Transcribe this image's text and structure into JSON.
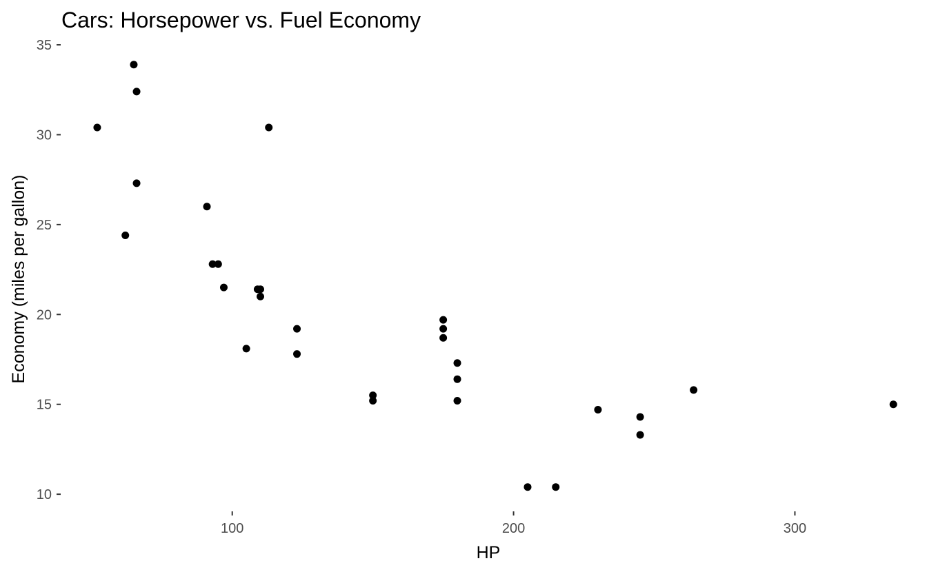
{
  "chart_data": {
    "type": "scatter",
    "title": "Cars: Horsepower vs. Fuel Economy",
    "xlabel": "HP",
    "ylabel": "Economy (miles per gallon)",
    "xlim": [
      40,
      345
    ],
    "ylim": [
      9.2,
      35.5
    ],
    "xticks": [
      100,
      200,
      300
    ],
    "yticks": [
      10,
      15,
      20,
      25,
      30,
      35
    ],
    "grid": false,
    "legend": "none",
    "colors": {
      "point": "#000000",
      "tick_label": "#4d4d4d",
      "tick": "#333333"
    },
    "series": [
      {
        "points": [
          {
            "x": 52,
            "y": 30.4
          },
          {
            "x": 65,
            "y": 33.9
          },
          {
            "x": 66,
            "y": 32.4
          },
          {
            "x": 66,
            "y": 27.3
          },
          {
            "x": 62,
            "y": 24.4
          },
          {
            "x": 91,
            "y": 26.0
          },
          {
            "x": 93,
            "y": 22.8
          },
          {
            "x": 95,
            "y": 22.8
          },
          {
            "x": 97,
            "y": 21.5
          },
          {
            "x": 105,
            "y": 18.1
          },
          {
            "x": 109,
            "y": 21.4
          },
          {
            "x": 110,
            "y": 21.4
          },
          {
            "x": 110,
            "y": 21.0
          },
          {
            "x": 113,
            "y": 30.4
          },
          {
            "x": 123,
            "y": 19.2
          },
          {
            "x": 123,
            "y": 17.8
          },
          {
            "x": 150,
            "y": 15.5
          },
          {
            "x": 150,
            "y": 15.2
          },
          {
            "x": 175,
            "y": 19.7
          },
          {
            "x": 175,
            "y": 19.2
          },
          {
            "x": 175,
            "y": 18.7
          },
          {
            "x": 180,
            "y": 17.3
          },
          {
            "x": 180,
            "y": 16.4
          },
          {
            "x": 180,
            "y": 15.2
          },
          {
            "x": 205,
            "y": 10.4
          },
          {
            "x": 215,
            "y": 10.4
          },
          {
            "x": 230,
            "y": 14.7
          },
          {
            "x": 245,
            "y": 14.3
          },
          {
            "x": 245,
            "y": 13.3
          },
          {
            "x": 264,
            "y": 15.8
          },
          {
            "x": 335,
            "y": 15.0
          }
        ]
      }
    ]
  }
}
